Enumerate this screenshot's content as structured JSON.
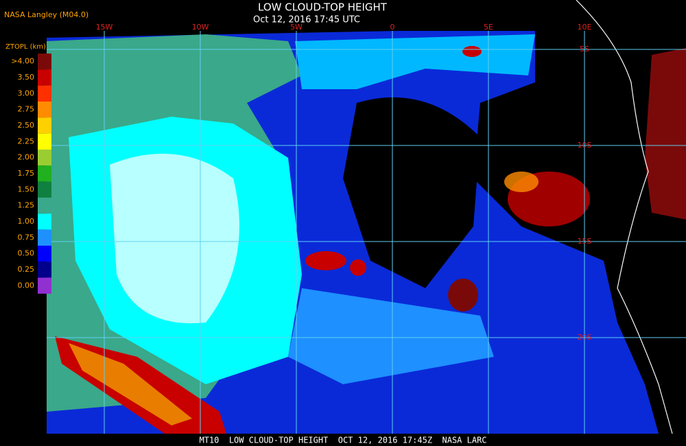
{
  "header": {
    "source": "NASA Langley (M04.0)",
    "title": "LOW CLOUD-TOP HEIGHT",
    "time": "Oct 12, 2016 17:45 UTC"
  },
  "legend": {
    "title": "ZTOPL (km)",
    "items": [
      {
        "label": ">4.00",
        "color": "#7a0a0a"
      },
      {
        "label": "3.50",
        "color": "#c80000"
      },
      {
        "label": "3.00",
        "color": "#ff3000"
      },
      {
        "label": "2.75",
        "color": "#ff8c00"
      },
      {
        "label": "2.50",
        "color": "#ffd000"
      },
      {
        "label": "2.25",
        "color": "#ffff00"
      },
      {
        "label": "2.00",
        "color": "#9acd32"
      },
      {
        "label": "1.75",
        "color": "#20b020"
      },
      {
        "label": "1.50",
        "color": "#108040"
      },
      {
        "label": "1.25",
        "color": "#3aa88a"
      },
      {
        "label": "1.00",
        "color": "#00ffff"
      },
      {
        "label": "0.75",
        "color": "#1e90ff"
      },
      {
        "label": "0.50",
        "color": "#0000ff"
      },
      {
        "label": "0.25",
        "color": "#00008b"
      },
      {
        "label": "0.00",
        "color": "#9030d0"
      }
    ]
  },
  "map": {
    "longitudes": [
      "15W",
      "10W",
      "5W",
      "0",
      "5E",
      "10E"
    ],
    "latitudes": [
      "5S",
      "10S",
      "15S",
      "20S"
    ]
  },
  "footer": {
    "caption": "MT10  LOW CLOUD-TOP HEIGHT  OCT 12, 2016 17:45Z  NASA LARC"
  }
}
